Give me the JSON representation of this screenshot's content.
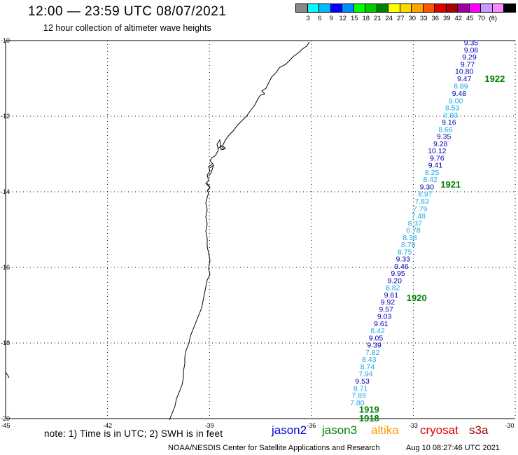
{
  "header": {
    "title": "12:00 — 23:59 UTC 08/07/2021",
    "subtitle": "12 hour collection of altimeter wave heights"
  },
  "legend": {
    "colors": [
      "#888888",
      "#00ffff",
      "#00bbff",
      "#0000ff",
      "#008cff",
      "#00ff00",
      "#00cc00",
      "#008000",
      "#ffff00",
      "#ffd700",
      "#ffa500",
      "#ff5500",
      "#dd0000",
      "#aa0000",
      "#990099",
      "#ff00ff",
      "#cc99ff",
      "#ff88ff",
      "#000000"
    ],
    "labels": [
      "3",
      "6",
      "9",
      "12",
      "15",
      "18",
      "21",
      "24",
      "27",
      "30",
      "33",
      "36",
      "39",
      "42",
      "45",
      "70",
      "(ft)"
    ]
  },
  "map": {
    "lat_labels": [
      "-10",
      "-12",
      "-14",
      "-16",
      "-18",
      "-20"
    ],
    "lon_labels": [
      "-45",
      "-42",
      "-39",
      "-36",
      "-33",
      "-30"
    ],
    "lat_values": [
      -10,
      -12,
      -14,
      -16,
      -18,
      -20
    ],
    "lon_values": [
      -45,
      -42,
      -39,
      -36,
      -33,
      -30
    ],
    "lon_range": [
      -45,
      -30
    ],
    "lat_range": [
      -20,
      -10
    ]
  },
  "passes": [
    {
      "label": "1922",
      "lon": -30.6,
      "lat": -11.0
    },
    {
      "label": "1921",
      "lon": -31.9,
      "lat": -13.8
    },
    {
      "label": "1920",
      "lon": -32.9,
      "lat": -16.8
    },
    {
      "label": "1919",
      "lon": -34.3,
      "lat": -19.75
    },
    {
      "label": "1918",
      "lon": -34.3,
      "lat": -19.98
    }
  ],
  "observations": [
    {
      "v": "9.35",
      "lon": -31.3,
      "lat": -10.05,
      "c": "#0000b4"
    },
    {
      "v": "9.08",
      "lon": -31.3,
      "lat": -10.24,
      "c": "#0000b4"
    },
    {
      "v": "9.29",
      "lon": -31.35,
      "lat": -10.43,
      "c": "#0000b4"
    },
    {
      "v": "9.77",
      "lon": -31.4,
      "lat": -10.62,
      "c": "#0000b4"
    },
    {
      "v": "10.80",
      "lon": -31.5,
      "lat": -10.81,
      "c": "#0000b4"
    },
    {
      "v": "9.47",
      "lon": -31.5,
      "lat": -11.0,
      "c": "#0000b4"
    },
    {
      "v": "8.89",
      "lon": -31.6,
      "lat": -11.19,
      "c": "#1ea8e0"
    },
    {
      "v": "9.48",
      "lon": -31.65,
      "lat": -11.39,
      "c": "#0000b4"
    },
    {
      "v": "9.00",
      "lon": -31.75,
      "lat": -11.58,
      "c": "#1ea8e0"
    },
    {
      "v": "8.53",
      "lon": -31.85,
      "lat": -11.77,
      "c": "#1ea8e0"
    },
    {
      "v": "8.93",
      "lon": -31.9,
      "lat": -11.96,
      "c": "#1ea8e0"
    },
    {
      "v": "9.16",
      "lon": -31.95,
      "lat": -12.15,
      "c": "#0000b4"
    },
    {
      "v": "8.66",
      "lon": -32.05,
      "lat": -12.34,
      "c": "#1ea8e0"
    },
    {
      "v": "9.35",
      "lon": -32.1,
      "lat": -12.53,
      "c": "#0000b4"
    },
    {
      "v": "9.28",
      "lon": -32.2,
      "lat": -12.72,
      "c": "#0000b4"
    },
    {
      "v": "10.12",
      "lon": -32.3,
      "lat": -12.91,
      "c": "#0000b4"
    },
    {
      "v": "9.76",
      "lon": -32.3,
      "lat": -13.1,
      "c": "#0000b4"
    },
    {
      "v": "9.41",
      "lon": -32.35,
      "lat": -13.29,
      "c": "#0000b4"
    },
    {
      "v": "8.25",
      "lon": -32.45,
      "lat": -13.48,
      "c": "#1ea8e0"
    },
    {
      "v": "8.42",
      "lon": -32.5,
      "lat": -13.67,
      "c": "#1ea8e0"
    },
    {
      "v": "9.30",
      "lon": -32.6,
      "lat": -13.86,
      "c": "#0000b4"
    },
    {
      "v": "8.97",
      "lon": -32.65,
      "lat": -14.05,
      "c": "#1ea8e0"
    },
    {
      "v": "7.83",
      "lon": -32.75,
      "lat": -14.24,
      "c": "#1ea8e0"
    },
    {
      "v": "7.79",
      "lon": -32.8,
      "lat": -14.44,
      "c": "#1ea8e0"
    },
    {
      "v": "7.48",
      "lon": -32.85,
      "lat": -14.63,
      "c": "#1ea8e0"
    },
    {
      "v": "8.37",
      "lon": -32.95,
      "lat": -14.82,
      "c": "#1ea8e0"
    },
    {
      "v": "6.78",
      "lon": -33.0,
      "lat": -15.01,
      "c": "#1ea8e0"
    },
    {
      "v": "8.38",
      "lon": -33.1,
      "lat": -15.2,
      "c": "#1ea8e0"
    },
    {
      "v": "8.78",
      "lon": -33.15,
      "lat": -15.39,
      "c": "#1ea8e0"
    },
    {
      "v": "8.75",
      "lon": -33.25,
      "lat": -15.58,
      "c": "#1ea8e0"
    },
    {
      "v": "9.33",
      "lon": -33.3,
      "lat": -15.77,
      "c": "#0000b4"
    },
    {
      "v": "9.46",
      "lon": -33.35,
      "lat": -15.96,
      "c": "#0000b4"
    },
    {
      "v": "9.95",
      "lon": -33.45,
      "lat": -16.15,
      "c": "#0000b4"
    },
    {
      "v": "9.20",
      "lon": -33.55,
      "lat": -16.34,
      "c": "#0000b4"
    },
    {
      "v": "8.82",
      "lon": -33.6,
      "lat": -16.53,
      "c": "#1ea8e0"
    },
    {
      "v": "9.61",
      "lon": -33.65,
      "lat": -16.72,
      "c": "#0000b4"
    },
    {
      "v": "9.92",
      "lon": -33.75,
      "lat": -16.91,
      "c": "#0000b4"
    },
    {
      "v": "9.57",
      "lon": -33.8,
      "lat": -17.1,
      "c": "#0000b4"
    },
    {
      "v": "9.03",
      "lon": -33.85,
      "lat": -17.29,
      "c": "#0000b4"
    },
    {
      "v": "9.61",
      "lon": -33.95,
      "lat": -17.48,
      "c": "#0000b4"
    },
    {
      "v": "8.42",
      "lon": -34.05,
      "lat": -17.67,
      "c": "#1ea8e0"
    },
    {
      "v": "9.05",
      "lon": -34.1,
      "lat": -17.86,
      "c": "#0000b4"
    },
    {
      "v": "9.39",
      "lon": -34.15,
      "lat": -18.05,
      "c": "#0000b4"
    },
    {
      "v": "7.82",
      "lon": -34.2,
      "lat": -18.24,
      "c": "#1ea8e0"
    },
    {
      "v": "8.43",
      "lon": -34.3,
      "lat": -18.43,
      "c": "#1ea8e0"
    },
    {
      "v": "8.74",
      "lon": -34.35,
      "lat": -18.62,
      "c": "#1ea8e0"
    },
    {
      "v": "7.94",
      "lon": -34.4,
      "lat": -18.81,
      "c": "#1ea8e0"
    },
    {
      "v": "9.53",
      "lon": -34.5,
      "lat": -19.0,
      "c": "#0000b4"
    },
    {
      "v": "8.71",
      "lon": -34.55,
      "lat": -19.19,
      "c": "#1ea8e0"
    },
    {
      "v": "7.89",
      "lon": -34.6,
      "lat": -19.38,
      "c": "#1ea8e0"
    },
    {
      "v": "7.80",
      "lon": -34.65,
      "lat": -19.57,
      "c": "#1ea8e0"
    }
  ],
  "footer": {
    "note": "note: 1) Time is in UTC; 2) SWH is in feet",
    "satellites": [
      {
        "name": "jason2",
        "color": "#0000dd"
      },
      {
        "name": "jason3",
        "color": "#008000"
      },
      {
        "name": "altika",
        "color": "#ff9900"
      },
      {
        "name": "cryosat",
        "color": "#dd0000"
      },
      {
        "name": "s3a",
        "color": "#990000"
      }
    ],
    "credit": "NOAA/NESDIS Center for Satellite Applications and Research",
    "timestamp": "Aug 10 08:27:46 UTC 2021"
  }
}
